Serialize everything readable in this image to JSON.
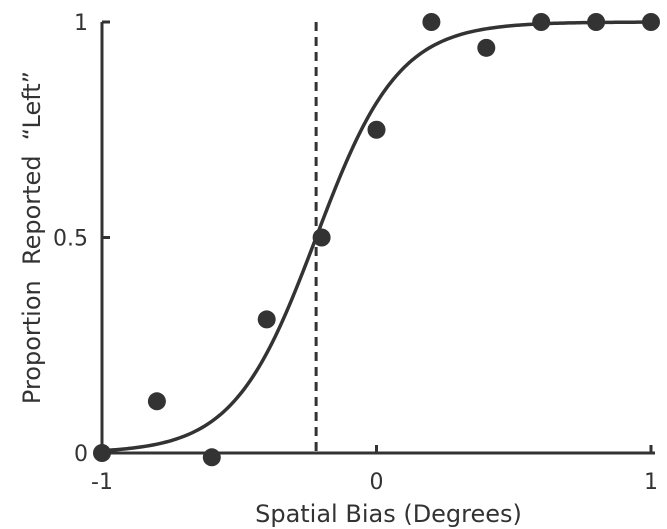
{
  "chart_data": {
    "type": "scatter",
    "title": "",
    "xlabel": "Spatial Bias (Degrees)",
    "ylabel": "Proportion  Reported  “Left”",
    "xlim": [
      -1,
      1
    ],
    "ylim": [
      0,
      1
    ],
    "xticks": [
      -1,
      0,
      1
    ],
    "xtick_labels": [
      "-1",
      "0",
      "1"
    ],
    "yticks": [
      0,
      0.5,
      1
    ],
    "ytick_labels": [
      "0",
      "0.5",
      "1"
    ],
    "grid": false,
    "legend": "none",
    "points": [
      {
        "x": -1.0,
        "y": 0.0
      },
      {
        "x": -0.8,
        "y": 0.12
      },
      {
        "x": -0.6,
        "y": -0.01
      },
      {
        "x": -0.4,
        "y": 0.31
      },
      {
        "x": -0.2,
        "y": 0.5
      },
      {
        "x": 0.0,
        "y": 0.75
      },
      {
        "x": 0.2,
        "y": 1.0
      },
      {
        "x": 0.4,
        "y": 0.94
      },
      {
        "x": 0.6,
        "y": 1.0
      },
      {
        "x": 0.8,
        "y": 1.0
      },
      {
        "x": 1.0,
        "y": 1.0
      }
    ],
    "fit_curve": {
      "type": "logistic",
      "mu": -0.22,
      "sigma": 0.15
    },
    "reference_line": {
      "x": -0.22,
      "style": "dashed"
    },
    "colors": {
      "marker": "#333333",
      "curve": "#333333",
      "axis": "#333333"
    }
  }
}
